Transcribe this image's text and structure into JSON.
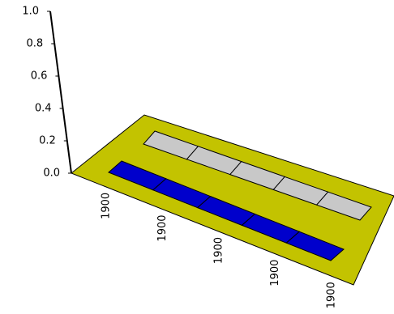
{
  "chart_data": {
    "type": "bar3d",
    "categories": [
      "1900",
      "1900",
      "1900",
      "1900",
      "1900"
    ],
    "series": [
      {
        "color": "#0000cc",
        "values": [
          0,
          0,
          0,
          0,
          0
        ]
      },
      {
        "color": "#c8c8c8",
        "values": [
          0,
          0,
          0,
          0,
          0
        ]
      }
    ],
    "floor_color": "#c3c300",
    "ylim": [
      0,
      1
    ],
    "yticks": [
      {
        "value": 0,
        "label": "0.0"
      },
      {
        "value": 0.2,
        "label": "0.2"
      },
      {
        "value": 0.4,
        "label": "0.4"
      },
      {
        "value": 0.6,
        "label": "0.6"
      },
      {
        "value": 0.8,
        "label": "0.8"
      },
      {
        "value": 1,
        "label": "1.0"
      }
    ]
  }
}
